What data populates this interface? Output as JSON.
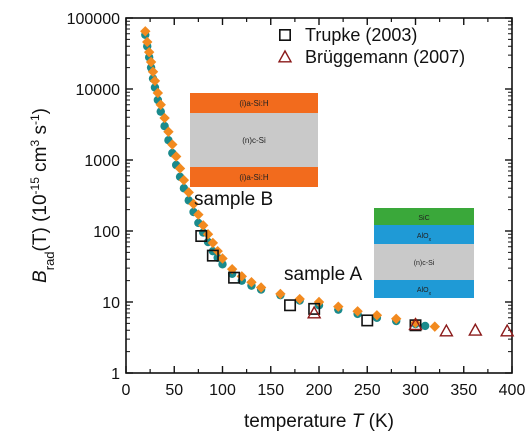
{
  "chart_data": {
    "type": "scatter",
    "title": "",
    "ylabel": {
      "main": "B",
      "sub": "rad",
      "arg": "(T)",
      "units_pre": " (10",
      "units_exp": "-15",
      "units_mid": " cm",
      "units_exp2": "3",
      "units_mid2": " s",
      "units_exp3": "-1",
      "units_end": ")"
    },
    "xlabel": {
      "pre": "temperature ",
      "var": "T",
      "post": " (K)"
    },
    "xlim": [
      0,
      400
    ],
    "ylim": [
      1,
      100000
    ],
    "yscale": "log",
    "xticks": [
      0,
      50,
      100,
      150,
      200,
      250,
      300,
      350,
      400
    ],
    "xtick_labels": [
      "0",
      "50",
      "100",
      "150",
      "200",
      "250",
      "300",
      "350",
      "400"
    ],
    "yticks": [
      1,
      10,
      100,
      1000,
      10000,
      100000
    ],
    "ytick_labels": [
      "1",
      "10",
      "100",
      "1000",
      "10000",
      "100000"
    ],
    "legend_position": "top-right",
    "series": [
      {
        "name": "",
        "marker": "circle-filled",
        "color": "#1a8a8c",
        "points": [
          [
            20,
            58000
          ],
          [
            22,
            40000
          ],
          [
            24,
            28000
          ],
          [
            26,
            20000
          ],
          [
            28,
            14000
          ],
          [
            30,
            10500
          ],
          [
            33,
            7000
          ],
          [
            36,
            4800
          ],
          [
            40,
            3000
          ],
          [
            44,
            1900
          ],
          [
            48,
            1250
          ],
          [
            52,
            850
          ],
          [
            56,
            580
          ],
          [
            60,
            400
          ],
          [
            65,
            270
          ],
          [
            70,
            185
          ],
          [
            75,
            130
          ],
          [
            80,
            95
          ],
          [
            85,
            70
          ],
          [
            90,
            52
          ],
          [
            95,
            42
          ],
          [
            100,
            34
          ],
          [
            110,
            25
          ],
          [
            120,
            20
          ],
          [
            130,
            17
          ],
          [
            140,
            15
          ],
          [
            160,
            12.5
          ],
          [
            180,
            10.5
          ],
          [
            200,
            9
          ],
          [
            220,
            7.8
          ],
          [
            240,
            6.8
          ],
          [
            260,
            6
          ],
          [
            280,
            5.4
          ],
          [
            300,
            4.9
          ],
          [
            310,
            4.6
          ]
        ]
      },
      {
        "name": "",
        "marker": "diamond-filled",
        "color": "#f28a1f",
        "points": [
          [
            20,
            65000
          ],
          [
            22,
            46000
          ],
          [
            24,
            33000
          ],
          [
            26,
            24000
          ],
          [
            28,
            17500
          ],
          [
            30,
            13000
          ],
          [
            33,
            8800
          ],
          [
            36,
            6000
          ],
          [
            40,
            3900
          ],
          [
            44,
            2500
          ],
          [
            48,
            1650
          ],
          [
            52,
            1120
          ],
          [
            56,
            760
          ],
          [
            60,
            520
          ],
          [
            65,
            350
          ],
          [
            70,
            240
          ],
          [
            75,
            170
          ],
          [
            80,
            120
          ],
          [
            85,
            90
          ],
          [
            90,
            68
          ],
          [
            95,
            52
          ],
          [
            100,
            41
          ],
          [
            110,
            29
          ],
          [
            120,
            23
          ],
          [
            130,
            19
          ],
          [
            140,
            16
          ],
          [
            160,
            13
          ],
          [
            180,
            11
          ],
          [
            200,
            10
          ],
          [
            220,
            8.6
          ],
          [
            240,
            7.4
          ],
          [
            260,
            6.5
          ],
          [
            280,
            5.8
          ],
          [
            300,
            5.1
          ],
          [
            320,
            4.5
          ]
        ]
      },
      {
        "name": "Trupke (2003)",
        "marker": "square-open",
        "color": "#111111",
        "points": [
          [
            78,
            85
          ],
          [
            90,
            45
          ],
          [
            112,
            22
          ],
          [
            170,
            9
          ],
          [
            195,
            8
          ],
          [
            250,
            5.5
          ],
          [
            300,
            4.7
          ]
        ]
      },
      {
        "name": "Brüggemann (2007)",
        "marker": "triangle-open",
        "color": "#8b1a1a",
        "points": [
          [
            195,
            7
          ],
          [
            300,
            4.8
          ],
          [
            332,
            3.9
          ],
          [
            362,
            4
          ],
          [
            395,
            3.9
          ]
        ]
      }
    ],
    "annotations": {
      "sample_b": {
        "label": "sample B",
        "layers": [
          "(i)a-Si:H",
          "(n)c-Si",
          "(i)a-Si:H"
        ]
      },
      "sample_a": {
        "label": "sample A",
        "layers": [
          "SiC",
          "AlO",
          "(n)c-Si",
          "AlO"
        ],
        "layer_sub": "x"
      }
    }
  }
}
